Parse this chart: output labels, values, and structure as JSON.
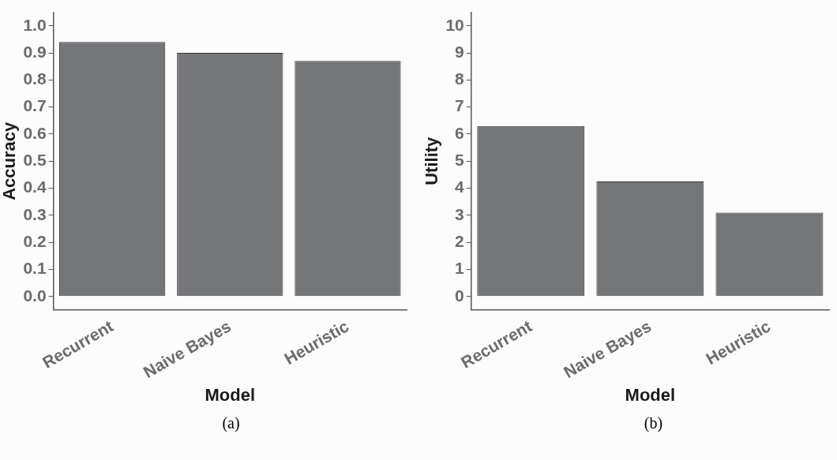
{
  "chart_data": [
    {
      "type": "bar",
      "categories": [
        "Recurrent",
        "Naive Bayes",
        "Heuristic"
      ],
      "values": [
        0.94,
        0.9,
        0.87
      ],
      "color": "#75767a",
      "xlabel": "Model",
      "ylabel": "Accuracy",
      "ylim": [
        -0.05,
        1.05
      ],
      "yticks": [
        {
          "value": 0,
          "label": "0.0"
        },
        0.1,
        0.2,
        0.3,
        0.4,
        0.5,
        0.6,
        0.7,
        0.8,
        0.9,
        {
          "value": 1,
          "label": "1.0"
        }
      ],
      "grid": false,
      "legend": false,
      "annotations": [
        "(a)"
      ]
    },
    {
      "type": "bar",
      "categories": [
        "Recurrent",
        "Naive Bayes",
        "Heuristic"
      ],
      "values": [
        6.3,
        4.25,
        3.1
      ],
      "color": "#75767a",
      "xlabel": "Model",
      "ylabel": "Utility",
      "ylim": [
        -0.5,
        10.5
      ],
      "yticks": [
        0,
        1,
        2,
        3,
        4,
        5,
        6,
        7,
        8,
        9,
        10
      ],
      "grid": false,
      "legend": false,
      "annotations": [
        "(b)"
      ]
    }
  ]
}
